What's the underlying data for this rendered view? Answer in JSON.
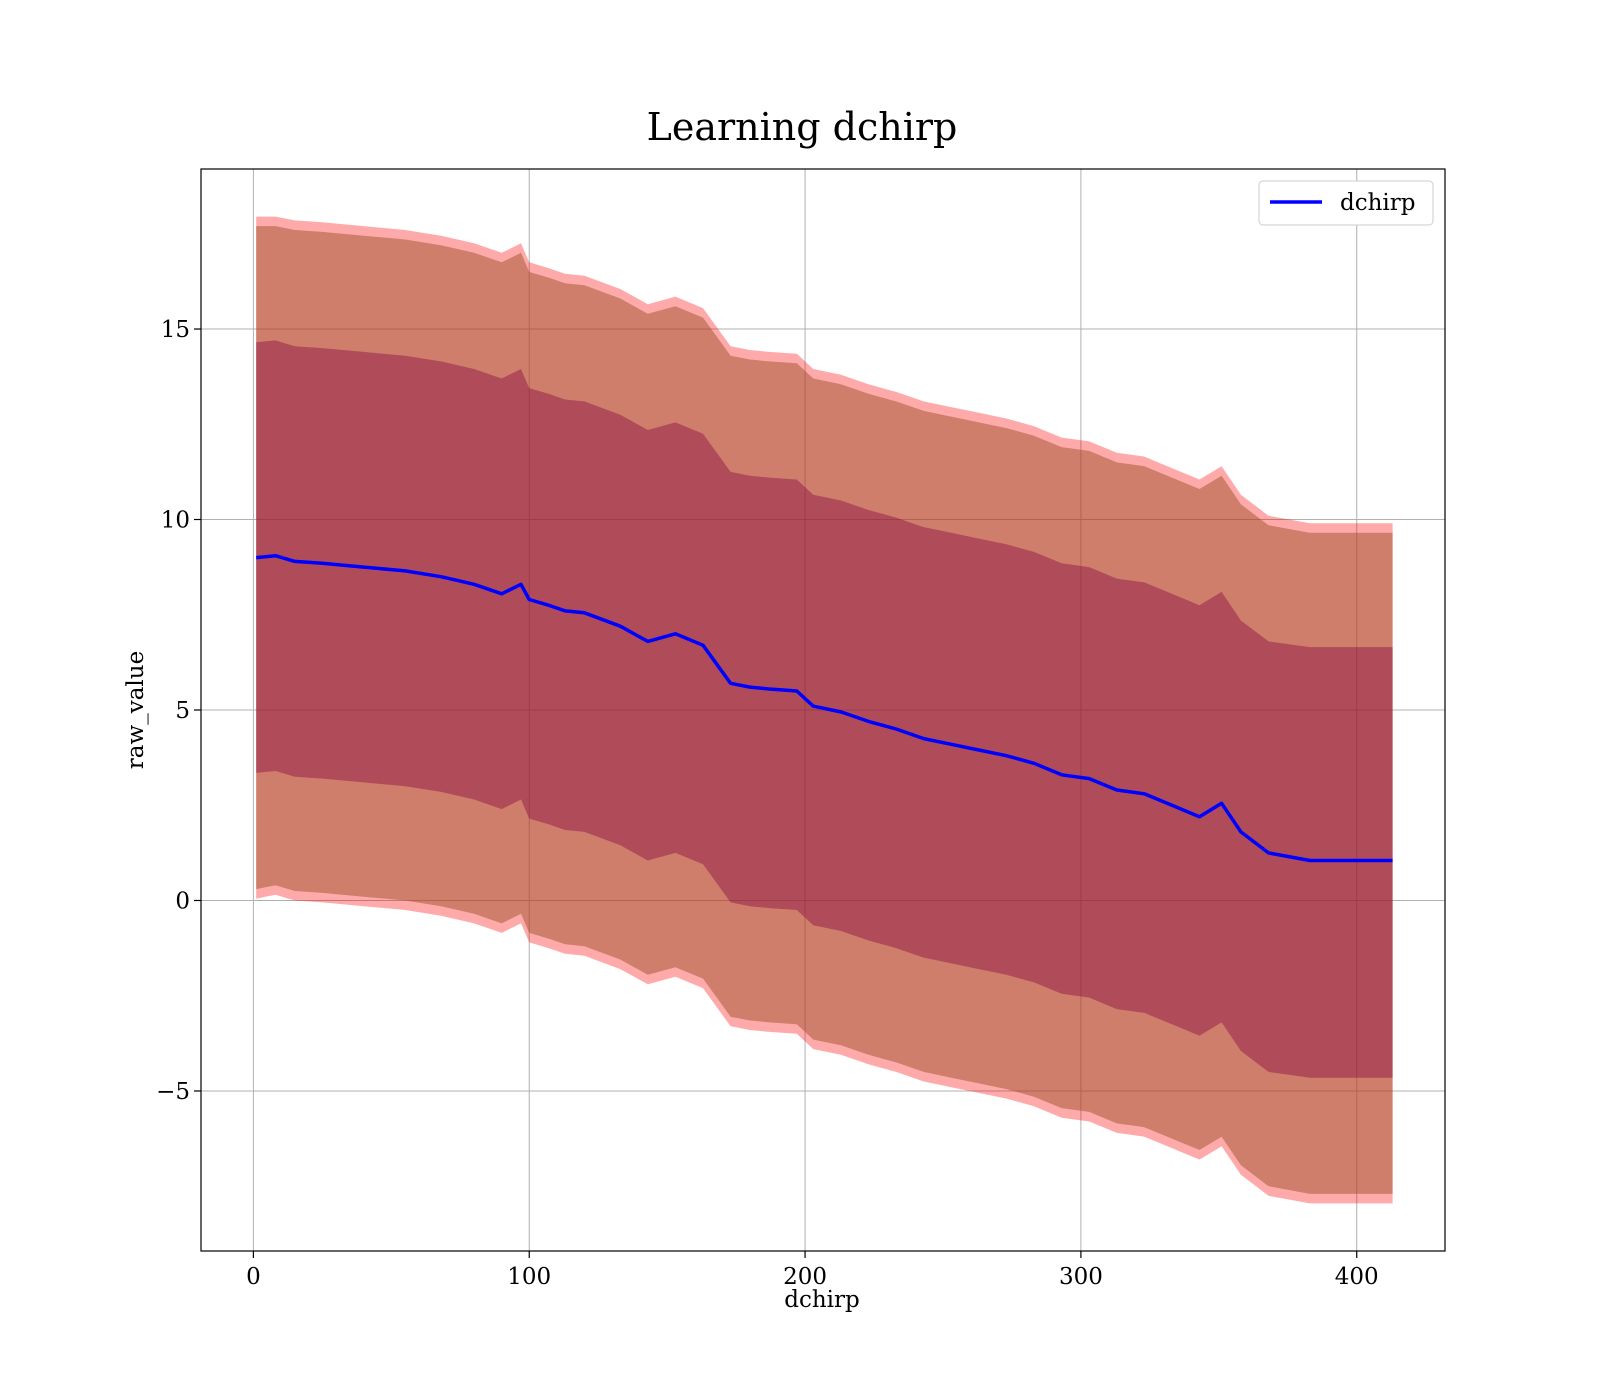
{
  "chart_data": {
    "type": "area",
    "title": "Learning dchirp",
    "xlabel": "dchirp",
    "ylabel": "raw_value",
    "xlim": [
      -19,
      432
    ],
    "ylim": [
      -9.2,
      19.2
    ],
    "x_ticks": [
      0,
      100,
      200,
      300,
      400
    ],
    "x_tick_labels": [
      "0",
      "100",
      "200",
      "300",
      "400"
    ],
    "y_ticks": [
      -5,
      0,
      5,
      10,
      15
    ],
    "y_tick_labels": [
      "−5",
      "0",
      "5",
      "10",
      "15"
    ],
    "grid": true,
    "legend": {
      "position": "top-right",
      "entries": [
        "dchirp"
      ]
    },
    "colors": {
      "line": "#0000ff",
      "outer_band": "#ff000055",
      "middle_band": "#a0522d80",
      "inner_band": "#80004065",
      "grid": "#b0b0b0"
    },
    "x": [
      1,
      8,
      15,
      25,
      40,
      55,
      68,
      80,
      90,
      97,
      100,
      107,
      113,
      120,
      133,
      143,
      153,
      163,
      168,
      173,
      180,
      187,
      197,
      203,
      213,
      223,
      233,
      243,
      253,
      263,
      273,
      283,
      293,
      303,
      313,
      323,
      333,
      343,
      351,
      358,
      368,
      383,
      413
    ],
    "series": [
      {
        "name": "dchirp",
        "role": "mean",
        "values": [
          9.0,
          9.05,
          8.9,
          8.85,
          8.75,
          8.65,
          8.5,
          8.3,
          8.05,
          8.3,
          7.9,
          7.75,
          7.6,
          7.55,
          7.2,
          6.8,
          7.0,
          6.7,
          6.2,
          5.7,
          5.6,
          5.55,
          5.5,
          5.1,
          4.95,
          4.7,
          4.5,
          4.25,
          4.1,
          3.95,
          3.8,
          3.6,
          3.3,
          3.2,
          2.9,
          2.8,
          2.5,
          2.2,
          2.55,
          1.8,
          1.25,
          1.05,
          1.05
        ]
      },
      {
        "name": "",
        "role": "outer_band_upper",
        "values": [
          17.95,
          17.95,
          17.85,
          17.8,
          17.7,
          17.6,
          17.45,
          17.25,
          17.0,
          17.25,
          16.75,
          16.6,
          16.45,
          16.4,
          16.05,
          15.65,
          15.85,
          15.55,
          15.05,
          14.55,
          14.45,
          14.4,
          14.35,
          13.95,
          13.8,
          13.55,
          13.35,
          13.1,
          12.95,
          12.8,
          12.65,
          12.45,
          12.15,
          12.05,
          11.75,
          11.65,
          11.35,
          11.05,
          11.4,
          10.65,
          10.1,
          9.9,
          9.9
        ]
      },
      {
        "name": "",
        "role": "outer_band_lower",
        "values": [
          0.05,
          0.15,
          0.0,
          -0.05,
          -0.15,
          -0.25,
          -0.4,
          -0.6,
          -0.85,
          -0.6,
          -1.1,
          -1.25,
          -1.4,
          -1.45,
          -1.8,
          -2.2,
          -2.0,
          -2.3,
          -2.8,
          -3.3,
          -3.4,
          -3.45,
          -3.5,
          -3.9,
          -4.05,
          -4.3,
          -4.5,
          -4.75,
          -4.9,
          -5.05,
          -5.2,
          -5.4,
          -5.7,
          -5.8,
          -6.1,
          -6.2,
          -6.5,
          -6.8,
          -6.45,
          -7.2,
          -7.75,
          -7.95,
          -7.95
        ]
      },
      {
        "name": "",
        "role": "middle_band_upper",
        "values": [
          17.7,
          17.7,
          17.6,
          17.55,
          17.45,
          17.35,
          17.2,
          17.0,
          16.75,
          17.0,
          16.5,
          16.35,
          16.2,
          16.15,
          15.8,
          15.4,
          15.6,
          15.3,
          14.8,
          14.3,
          14.2,
          14.15,
          14.1,
          13.7,
          13.55,
          13.3,
          13.1,
          12.85,
          12.7,
          12.55,
          12.4,
          12.2,
          11.9,
          11.8,
          11.5,
          11.4,
          11.1,
          10.8,
          11.15,
          10.4,
          9.85,
          9.65,
          9.65
        ]
      },
      {
        "name": "",
        "role": "middle_band_lower",
        "values": [
          0.3,
          0.4,
          0.25,
          0.2,
          0.1,
          0.0,
          -0.15,
          -0.35,
          -0.6,
          -0.35,
          -0.85,
          -1.0,
          -1.15,
          -1.2,
          -1.55,
          -1.95,
          -1.75,
          -2.05,
          -2.55,
          -3.05,
          -3.15,
          -3.2,
          -3.25,
          -3.65,
          -3.8,
          -4.05,
          -4.25,
          -4.5,
          -4.65,
          -4.8,
          -4.95,
          -5.15,
          -5.45,
          -5.55,
          -5.85,
          -5.95,
          -6.25,
          -6.55,
          -6.2,
          -6.95,
          -7.5,
          -7.7,
          -7.7
        ]
      },
      {
        "name": "",
        "role": "inner_band_upper",
        "values": [
          14.65,
          14.7,
          14.55,
          14.5,
          14.4,
          14.3,
          14.15,
          13.95,
          13.7,
          13.95,
          13.45,
          13.3,
          13.15,
          13.1,
          12.75,
          12.35,
          12.55,
          12.25,
          11.75,
          11.25,
          11.15,
          11.1,
          11.05,
          10.65,
          10.5,
          10.25,
          10.05,
          9.8,
          9.65,
          9.5,
          9.35,
          9.15,
          8.85,
          8.75,
          8.45,
          8.35,
          8.05,
          7.75,
          8.1,
          7.35,
          6.8,
          6.65,
          6.65
        ]
      },
      {
        "name": "",
        "role": "inner_band_lower",
        "values": [
          3.35,
          3.4,
          3.25,
          3.2,
          3.1,
          3.0,
          2.85,
          2.65,
          2.4,
          2.65,
          2.15,
          2.0,
          1.85,
          1.8,
          1.45,
          1.05,
          1.25,
          0.95,
          0.45,
          -0.05,
          -0.15,
          -0.2,
          -0.25,
          -0.65,
          -0.8,
          -1.05,
          -1.25,
          -1.5,
          -1.65,
          -1.8,
          -1.95,
          -2.15,
          -2.45,
          -2.55,
          -2.85,
          -2.95,
          -3.25,
          -3.55,
          -3.2,
          -3.95,
          -4.5,
          -4.65,
          -4.65
        ]
      }
    ]
  }
}
